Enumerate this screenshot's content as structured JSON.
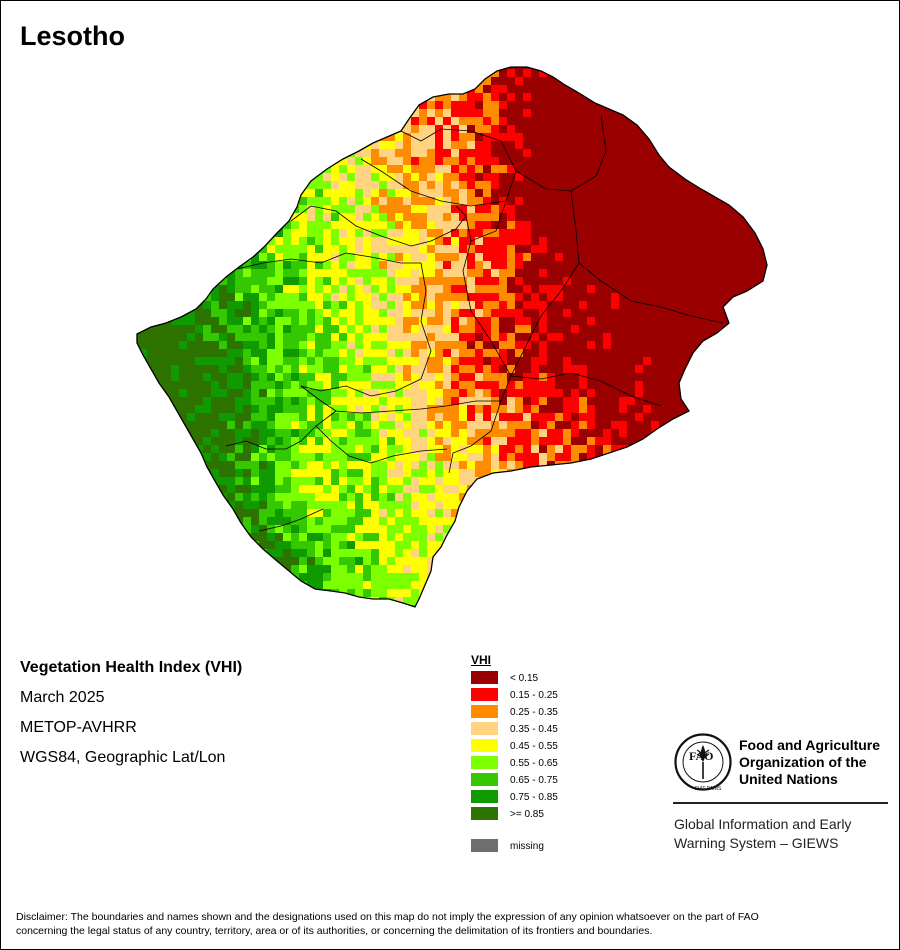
{
  "map": {
    "country": "Lesotho"
  },
  "info": {
    "title": "Vegetation Health Index (VHI)",
    "date": "March 2025",
    "sensor": "METOP-AVHRR",
    "projection": "WGS84, Geographic Lat/Lon"
  },
  "legend": {
    "title": "VHI",
    "classes": [
      {
        "label": "< 0.15",
        "color": "#9b0000"
      },
      {
        "label": "0.15 - 0.25",
        "color": "#ff0000"
      },
      {
        "label": "0.25 - 0.35",
        "color": "#ff8c00"
      },
      {
        "label": "0.35 - 0.45",
        "color": "#ffd37f"
      },
      {
        "label": "0.45 - 0.55",
        "color": "#ffff00"
      },
      {
        "label": "0.55 - 0.65",
        "color": "#7cff00"
      },
      {
        "label": "0.65 - 0.75",
        "color": "#33c800"
      },
      {
        "label": "0.75 - 0.85",
        "color": "#0f9a00"
      },
      {
        "label": ">= 0.85",
        "color": "#2d7300"
      }
    ],
    "missing": {
      "label": "missing",
      "color": "#6e6e6e"
    }
  },
  "logo": {
    "org_line1": "Food and Agriculture",
    "org_line2": "Organization of the",
    "org_line3": "United Nations",
    "emblem_text": "FAO",
    "motto": "FIAT PANIS",
    "system_line1": "Global Information and Early",
    "system_line2": "Warning System – GIEWS"
  },
  "disclaimer": {
    "line1": "Disclaimer: The boundaries and names shown and the designations used on this map do not imply the expression of any opinion whatsoever on the part of FAO",
    "line2": "concerning the legal status of any country, territory, area or of its authorities, or concerning the delimitation of its frontiers and boundaries."
  }
}
